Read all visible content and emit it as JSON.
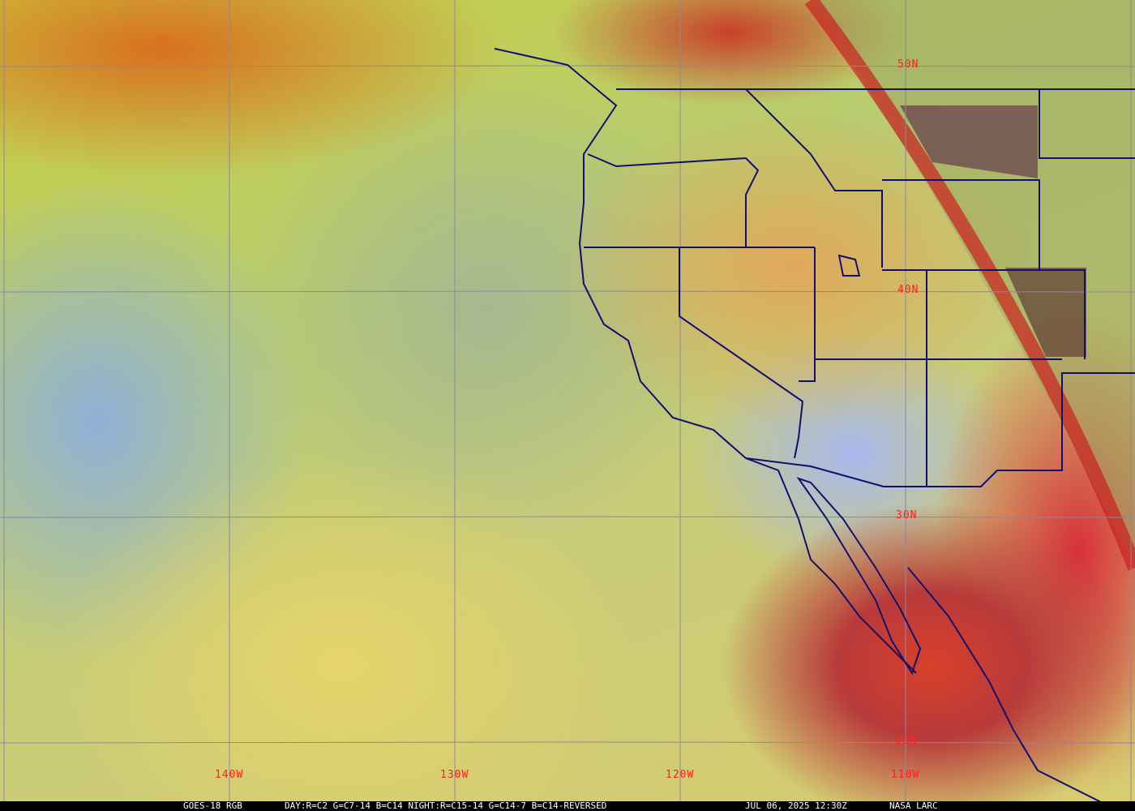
{
  "map": {
    "latitude_labels": [
      "50N",
      "40N",
      "30N",
      "20N"
    ],
    "longitude_labels": [
      "140W",
      "130W",
      "120W",
      "110W"
    ],
    "grid_color": "#8888aa",
    "boundary_color": "#101070",
    "label_color": "#ff2020"
  },
  "footer": {
    "product": "GOES-18 RGB",
    "recipe": "DAY:R=C2 G=C7-14 B=C14 NIGHT:R=C15-14 G=C14-7 B=C14-REVERSED",
    "timestamp": "JUL 06, 2025 12:30Z",
    "source": "NASA LARC"
  }
}
